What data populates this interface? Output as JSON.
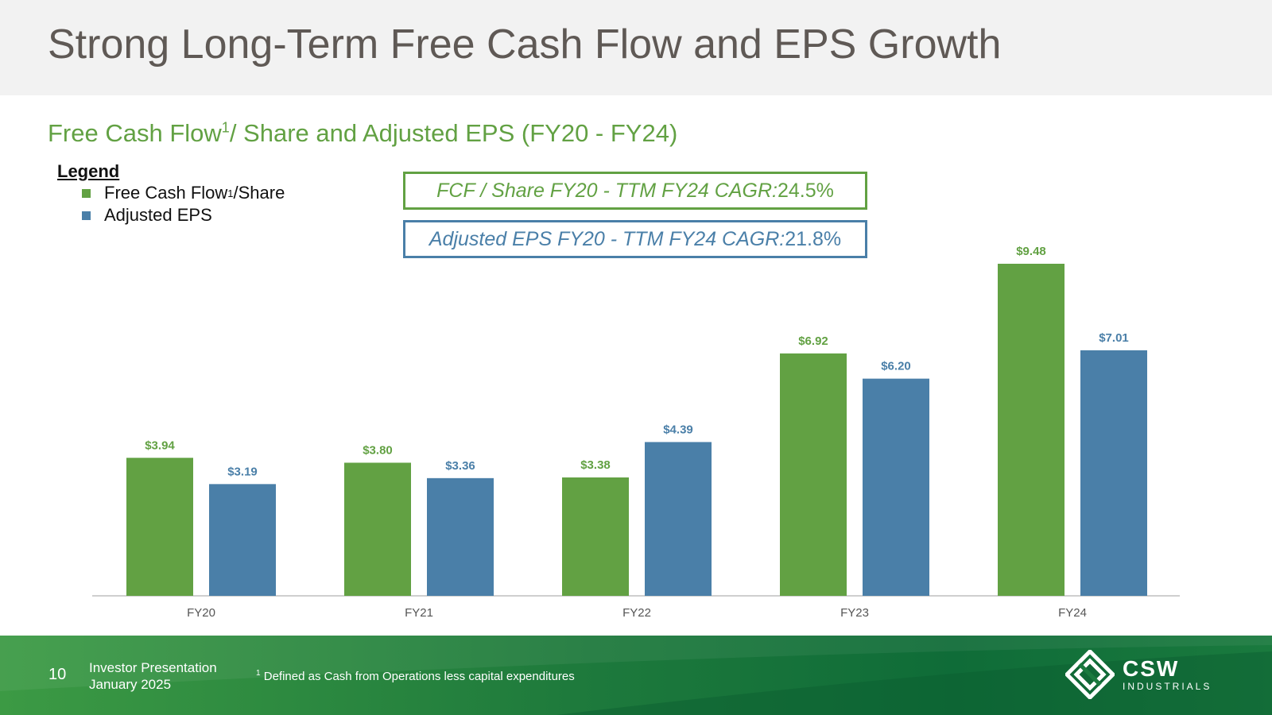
{
  "header": {
    "title": "Strong Long-Term Free Cash Flow and EPS Growth"
  },
  "subtitle": {
    "text_before": "Free Cash Flow",
    "superscript": "1",
    "text_after": "/ Share and Adjusted EPS (FY20 - FY24)"
  },
  "legend": {
    "title": "Legend",
    "items": [
      {
        "label_before": "Free Cash Flow",
        "superscript": "1",
        "label_after": "/Share",
        "color": "#62a143"
      },
      {
        "label": "Adjusted EPS",
        "color": "#4a7fa8"
      }
    ]
  },
  "cagr": {
    "fcf": {
      "label": "FCF / Share FY20 - TTM FY24 CAGR:",
      "value": " 24.5%"
    },
    "eps": {
      "label": "Adjusted EPS FY20 - TTM FY24 CAGR:",
      "value": " 21.8%"
    }
  },
  "chart_data": {
    "type": "bar",
    "categories": [
      "FY20",
      "FY21",
      "FY22",
      "FY23",
      "FY24"
    ],
    "series": [
      {
        "name": "Free Cash Flow1/Share",
        "color": "#62a143",
        "values": [
          3.94,
          3.8,
          3.38,
          6.92,
          9.48
        ],
        "labels": [
          "$3.94",
          "$3.80",
          "$3.38",
          "$6.92",
          "$9.48"
        ]
      },
      {
        "name": "Adjusted EPS",
        "color": "#4a7fa8",
        "values": [
          3.19,
          3.36,
          4.39,
          6.2,
          7.01
        ],
        "labels": [
          "$3.19",
          "$3.36",
          "$4.39",
          "$6.20",
          "$7.01"
        ]
      }
    ],
    "ylim": [
      0,
      9.48
    ],
    "grid": false,
    "legend_position": "top-left"
  },
  "footer": {
    "page_number": "10",
    "presentation_line1": "Investor Presentation",
    "presentation_line2": "January 2025",
    "footnote_superscript": "1",
    "footnote_text": " Defined as Cash from Operations less capital expenditures",
    "logo_main": "CSW",
    "logo_sub": "INDUSTRIALS"
  }
}
